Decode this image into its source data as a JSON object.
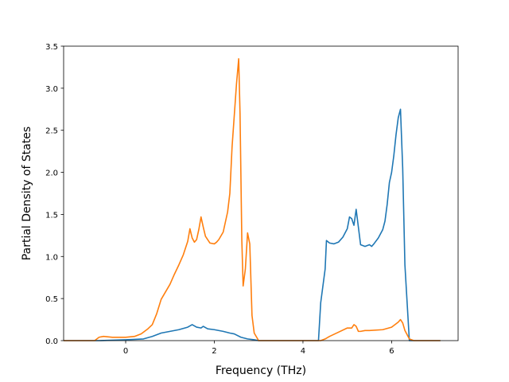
{
  "chart_data": {
    "type": "line",
    "title": "",
    "xlabel": "Frequency (THz)",
    "ylabel": "Partial Density of States",
    "xlim": [
      -1.4,
      7.5
    ],
    "ylim": [
      0,
      3.5
    ],
    "xticks": [
      0,
      2,
      4,
      6
    ],
    "xtick_labels": [
      "0",
      "2",
      "4",
      "6"
    ],
    "yticks": [
      0.0,
      0.5,
      1.0,
      1.5,
      2.0,
      2.5,
      3.0,
      3.5
    ],
    "ytick_labels": [
      "0.0",
      "0.5",
      "1.0",
      "1.5",
      "2.0",
      "2.5",
      "3.0",
      "3.5"
    ],
    "grid": false,
    "legend": "none",
    "series": [
      {
        "color": "#1f77b4",
        "x": [
          -1.4,
          -0.6,
          0.0,
          0.4,
          0.6,
          0.8,
          1.0,
          1.2,
          1.4,
          1.5,
          1.6,
          1.7,
          1.75,
          1.85,
          2.0,
          2.2,
          2.35,
          2.45,
          2.6,
          2.75,
          2.9,
          3.0,
          3.5,
          4.0,
          4.35,
          4.4,
          4.5,
          4.53,
          4.6,
          4.7,
          4.8,
          4.9,
          5.0,
          5.05,
          5.1,
          5.15,
          5.2,
          5.25,
          5.3,
          5.4,
          5.5,
          5.55,
          5.6,
          5.7,
          5.8,
          5.85,
          5.9,
          5.95,
          6.0,
          6.05,
          6.1,
          6.15,
          6.2,
          6.25,
          6.3,
          6.4,
          6.5,
          7.1
        ],
        "y": [
          0.0,
          0.0,
          0.01,
          0.02,
          0.05,
          0.09,
          0.11,
          0.13,
          0.16,
          0.19,
          0.16,
          0.15,
          0.17,
          0.14,
          0.13,
          0.11,
          0.09,
          0.08,
          0.04,
          0.02,
          0.01,
          0.0,
          0.0,
          0.0,
          0.0,
          0.45,
          0.85,
          1.19,
          1.16,
          1.15,
          1.17,
          1.23,
          1.33,
          1.47,
          1.45,
          1.37,
          1.56,
          1.35,
          1.14,
          1.12,
          1.14,
          1.12,
          1.15,
          1.22,
          1.32,
          1.42,
          1.62,
          1.88,
          2.0,
          2.2,
          2.45,
          2.65,
          2.75,
          2.05,
          0.9,
          0.0,
          0.0,
          0.0
        ]
      },
      {
        "color": "#ff7f0e",
        "x": [
          -1.4,
          -0.7,
          -0.6,
          -0.5,
          -0.3,
          0.0,
          0.2,
          0.35,
          0.5,
          0.6,
          0.7,
          0.8,
          0.9,
          1.0,
          1.1,
          1.2,
          1.3,
          1.4,
          1.45,
          1.5,
          1.55,
          1.6,
          1.65,
          1.7,
          1.75,
          1.8,
          1.9,
          2.0,
          2.05,
          2.1,
          2.2,
          2.3,
          2.35,
          2.4,
          2.5,
          2.55,
          2.58,
          2.62,
          2.65,
          2.7,
          2.75,
          2.8,
          2.85,
          2.9,
          3.0,
          3.5,
          4.0,
          4.4,
          4.5,
          4.6,
          4.8,
          5.0,
          5.1,
          5.15,
          5.2,
          5.25,
          5.3,
          5.4,
          5.5,
          5.8,
          6.0,
          6.1,
          6.15,
          6.2,
          6.25,
          6.3,
          6.4,
          6.5,
          7.1
        ],
        "y": [
          0.0,
          0.0,
          0.04,
          0.05,
          0.04,
          0.04,
          0.05,
          0.08,
          0.14,
          0.19,
          0.32,
          0.49,
          0.58,
          0.67,
          0.79,
          0.9,
          1.02,
          1.18,
          1.33,
          1.22,
          1.17,
          1.2,
          1.32,
          1.47,
          1.35,
          1.24,
          1.16,
          1.15,
          1.17,
          1.2,
          1.29,
          1.53,
          1.75,
          2.3,
          3.05,
          3.35,
          2.7,
          1.2,
          0.65,
          0.85,
          1.28,
          1.15,
          0.3,
          0.09,
          0.0,
          0.0,
          0.0,
          0.0,
          0.02,
          0.05,
          0.1,
          0.15,
          0.15,
          0.19,
          0.17,
          0.11,
          0.11,
          0.12,
          0.12,
          0.13,
          0.16,
          0.2,
          0.22,
          0.25,
          0.21,
          0.12,
          0.02,
          0.0,
          0.0
        ]
      }
    ]
  }
}
